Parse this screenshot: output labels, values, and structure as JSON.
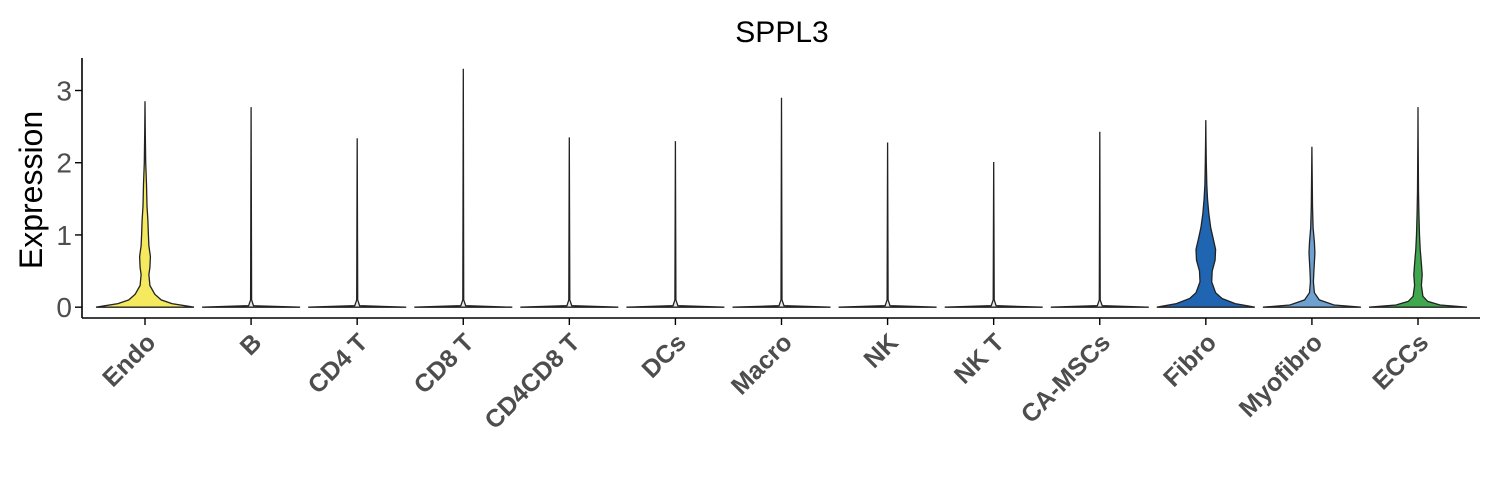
{
  "chart_data": {
    "type": "violin",
    "title": "SPPL3",
    "xlabel": "",
    "ylabel": "Expression",
    "ylim": [
      -0.15,
      3.45
    ],
    "yticks": [
      0,
      1,
      2,
      3
    ],
    "grid": false,
    "legend": "none",
    "categories": [
      "Endo",
      "B",
      "CD4 T",
      "CD8 T",
      "CD4CD8 T",
      "DCs",
      "Macro",
      "NK",
      "NK T",
      "CA-MSCs",
      "Fibro",
      "Myofibro",
      "ECCs"
    ],
    "max_values": [
      2.85,
      2.77,
      2.34,
      3.3,
      2.35,
      2.3,
      2.9,
      2.28,
      2.01,
      2.43,
      2.59,
      2.22,
      2.77
    ],
    "colors": [
      "#F5E960",
      "#E9E9E9",
      "#E9E9E9",
      "#E9E9E9",
      "#E9E9E9",
      "#E9E9E9",
      "#E9E9E9",
      "#E9E9E9",
      "#E9E9E9",
      "#E9E9E9",
      "#1F65B2",
      "#6FA1D0",
      "#3FA84F"
    ],
    "density_profiles": [
      [
        [
          0,
          1.0
        ],
        [
          0.05,
          0.55
        ],
        [
          0.1,
          0.33
        ],
        [
          0.18,
          0.2
        ],
        [
          0.3,
          0.1
        ],
        [
          0.45,
          0.08
        ],
        [
          0.55,
          0.1
        ],
        [
          0.7,
          0.11
        ],
        [
          0.85,
          0.08
        ],
        [
          1.0,
          0.07
        ],
        [
          1.2,
          0.06
        ],
        [
          1.4,
          0.04
        ],
        [
          1.7,
          0.03
        ],
        [
          2.0,
          0.015
        ],
        [
          2.4,
          0.006
        ],
        [
          2.85,
          0.0
        ]
      ],
      [
        [
          0,
          1.0
        ],
        [
          0.02,
          0.05
        ],
        [
          0.1,
          0.01
        ],
        [
          2.77,
          0.0
        ]
      ],
      [
        [
          0,
          1.0
        ],
        [
          0.02,
          0.05
        ],
        [
          0.1,
          0.01
        ],
        [
          2.34,
          0.0
        ]
      ],
      [
        [
          0,
          1.0
        ],
        [
          0.02,
          0.05
        ],
        [
          0.1,
          0.01
        ],
        [
          3.3,
          0.0
        ]
      ],
      [
        [
          0,
          1.0
        ],
        [
          0.02,
          0.05
        ],
        [
          0.1,
          0.01
        ],
        [
          2.35,
          0.0
        ]
      ],
      [
        [
          0,
          1.0
        ],
        [
          0.02,
          0.05
        ],
        [
          0.1,
          0.01
        ],
        [
          2.3,
          0.0
        ]
      ],
      [
        [
          0,
          1.0
        ],
        [
          0.02,
          0.05
        ],
        [
          0.1,
          0.01
        ],
        [
          2.9,
          0.0
        ]
      ],
      [
        [
          0,
          1.0
        ],
        [
          0.02,
          0.05
        ],
        [
          0.1,
          0.01
        ],
        [
          2.28,
          0.0
        ]
      ],
      [
        [
          0,
          1.0
        ],
        [
          0.02,
          0.05
        ],
        [
          0.1,
          0.01
        ],
        [
          2.01,
          0.0
        ]
      ],
      [
        [
          0,
          1.0
        ],
        [
          0.02,
          0.05
        ],
        [
          0.1,
          0.01
        ],
        [
          2.43,
          0.0
        ]
      ],
      [
        [
          0,
          1.0
        ],
        [
          0.05,
          0.6
        ],
        [
          0.12,
          0.33
        ],
        [
          0.2,
          0.2
        ],
        [
          0.35,
          0.12
        ],
        [
          0.5,
          0.13
        ],
        [
          0.65,
          0.19
        ],
        [
          0.8,
          0.2
        ],
        [
          0.95,
          0.15
        ],
        [
          1.1,
          0.1
        ],
        [
          1.3,
          0.06
        ],
        [
          1.5,
          0.035
        ],
        [
          1.7,
          0.02
        ],
        [
          2.0,
          0.01
        ],
        [
          2.3,
          0.004
        ],
        [
          2.59,
          0.0
        ]
      ],
      [
        [
          0,
          1.0
        ],
        [
          0.03,
          0.45
        ],
        [
          0.1,
          0.15
        ],
        [
          0.2,
          0.05
        ],
        [
          0.35,
          0.03
        ],
        [
          0.5,
          0.04
        ],
        [
          0.75,
          0.06
        ],
        [
          0.9,
          0.05
        ],
        [
          1.1,
          0.025
        ],
        [
          1.4,
          0.012
        ],
        [
          1.8,
          0.006
        ],
        [
          2.22,
          0.0
        ]
      ],
      [
        [
          0,
          1.0
        ],
        [
          0.03,
          0.45
        ],
        [
          0.08,
          0.2
        ],
        [
          0.15,
          0.1
        ],
        [
          0.3,
          0.07
        ],
        [
          0.45,
          0.085
        ],
        [
          0.6,
          0.07
        ],
        [
          0.8,
          0.045
        ],
        [
          1.0,
          0.03
        ],
        [
          1.3,
          0.018
        ],
        [
          1.6,
          0.01
        ],
        [
          2.0,
          0.006
        ],
        [
          2.4,
          0.003
        ],
        [
          2.77,
          0.0
        ]
      ]
    ]
  }
}
